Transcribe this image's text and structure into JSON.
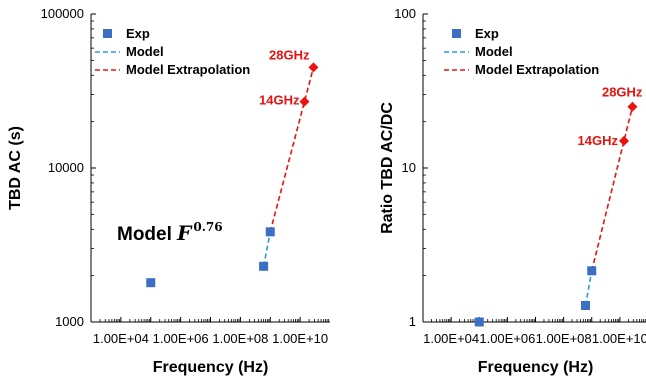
{
  "chart_data": [
    {
      "type": "scatter",
      "xlabel": "Frequency (Hz)",
      "ylabel": "TBD AC (s)",
      "xscale": "log",
      "yscale": "log",
      "xlim": [
        1000,
        100000000000
      ],
      "ylim": [
        1000,
        100000
      ],
      "x_ticks": [
        10000,
        1000000,
        100000000,
        10000000000
      ],
      "x_tick_labels": [
        "1.00E+04",
        "1.00E+06",
        "1.00E+08",
        "1.00E+10"
      ],
      "y_ticks": [
        1000,
        10000,
        100000
      ],
      "y_tick_labels": [
        "1000",
        "10000",
        "100000"
      ],
      "grid": false,
      "legend_position": "top-left",
      "series": [
        {
          "name": "Exp",
          "kind": "marker",
          "marker": "square",
          "color": "#3b6fc6",
          "x": [
            100000,
            600000000,
            1000000000
          ],
          "y": [
            1800,
            2300,
            3850
          ]
        },
        {
          "name": "Model",
          "kind": "line",
          "dash": true,
          "color": "#2e9ad6",
          "x": [
            600000000,
            1000000000
          ],
          "y": [
            2300,
            3850
          ]
        },
        {
          "name": "Model Extrapolation",
          "kind": "line",
          "dash": true,
          "color": "#e8130f",
          "marker": "diamond",
          "x": [
            1000000000,
            14000000000,
            28000000000
          ],
          "y": [
            3850,
            27000,
            45000
          ]
        }
      ],
      "annotations": [
        {
          "text": "28GHz",
          "x": 28000000000,
          "y": 45000,
          "anchor": "end",
          "dx": -4,
          "dy": -8
        },
        {
          "text": "14GHz",
          "x": 14000000000,
          "y": 27000,
          "anchor": "end",
          "dx": -5,
          "dy": 3
        }
      ],
      "note": {
        "prefix": "Model ",
        "var": "F",
        "exponent": "0.76"
      }
    },
    {
      "type": "scatter",
      "xlabel": "Frequency (Hz)",
      "ylabel": "Ratio TBD AC/DC",
      "xscale": "log",
      "yscale": "log",
      "xlim": [
        1000,
        100000000000
      ],
      "ylim": [
        1,
        100
      ],
      "x_ticks": [
        10000,
        1000000,
        100000000,
        10000000000
      ],
      "x_tick_labels": [
        "1.00E+04",
        "1.00E+06",
        "1.00E+08",
        "1.00E+10"
      ],
      "y_ticks": [
        1,
        10,
        100
      ],
      "y_tick_labels": [
        "1",
        "10",
        "100"
      ],
      "grid": false,
      "legend_position": "top-left",
      "series": [
        {
          "name": "Exp",
          "kind": "marker",
          "marker": "square",
          "color": "#3b6fc6",
          "x": [
            100000,
            600000000,
            1000000000
          ],
          "y": [
            1,
            1.28,
            2.15
          ]
        },
        {
          "name": "Model",
          "kind": "line",
          "dash": true,
          "color": "#2e9ad6",
          "x": [
            600000000,
            1000000000
          ],
          "y": [
            1.28,
            2.15
          ]
        },
        {
          "name": "Model Extrapolation",
          "kind": "line",
          "dash": true,
          "color": "#e8130f",
          "marker": "diamond",
          "x": [
            1000000000,
            14000000000,
            28000000000
          ],
          "y": [
            2.15,
            15,
            25
          ]
        }
      ],
      "annotations": [
        {
          "text": "28GHz",
          "x": 28000000000,
          "y": 25,
          "anchor": "end",
          "dx": 10,
          "dy": -10
        },
        {
          "text": "14GHz",
          "x": 14000000000,
          "y": 15,
          "anchor": "end",
          "dx": -6,
          "dy": 4
        }
      ]
    }
  ]
}
